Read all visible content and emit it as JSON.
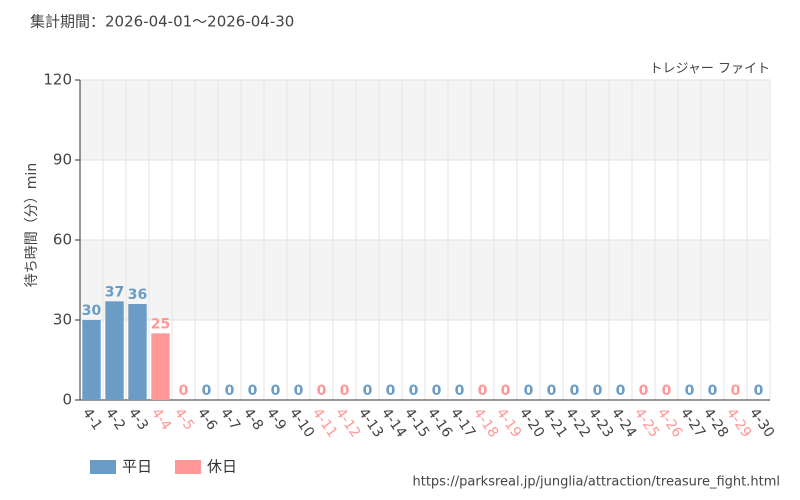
{
  "chart_data": {
    "type": "bar",
    "title": "集計期間：2026-04-01～2026-04-30",
    "subtitle": "トレジャー ファイト",
    "y_label": "待ち時間（分）min",
    "categories": [
      "4-1",
      "4-2",
      "4-3",
      "4-4",
      "4-5",
      "4-6",
      "4-7",
      "4-8",
      "4-9",
      "4-10",
      "4-11",
      "4-12",
      "4-13",
      "4-14",
      "4-15",
      "4-16",
      "4-17",
      "4-18",
      "4-19",
      "4-20",
      "4-21",
      "4-22",
      "4-23",
      "4-24",
      "4-25",
      "4-26",
      "4-27",
      "4-28",
      "4-29",
      "4-30"
    ],
    "series": [
      {
        "name": "平日",
        "color": "#6a9cc6",
        "values": [
          30,
          37,
          36,
          null,
          null,
          0,
          0,
          0,
          0,
          0,
          null,
          null,
          0,
          0,
          0,
          0,
          0,
          null,
          null,
          0,
          0,
          0,
          0,
          0,
          null,
          null,
          0,
          0,
          null,
          0
        ]
      },
      {
        "name": "休日",
        "color": "#ff9896",
        "values": [
          null,
          null,
          null,
          25,
          0,
          null,
          null,
          null,
          null,
          null,
          0,
          0,
          null,
          null,
          null,
          null,
          null,
          0,
          0,
          null,
          null,
          null,
          null,
          null,
          0,
          0,
          null,
          null,
          0,
          null
        ]
      }
    ],
    "ylim": [
      0,
      120
    ],
    "yticks": [
      0,
      30,
      60,
      90,
      120
    ],
    "grid": true,
    "legend": "bottom-left",
    "source": "https://parksreal.jp/junglia/attraction/treasure_fight.html"
  }
}
